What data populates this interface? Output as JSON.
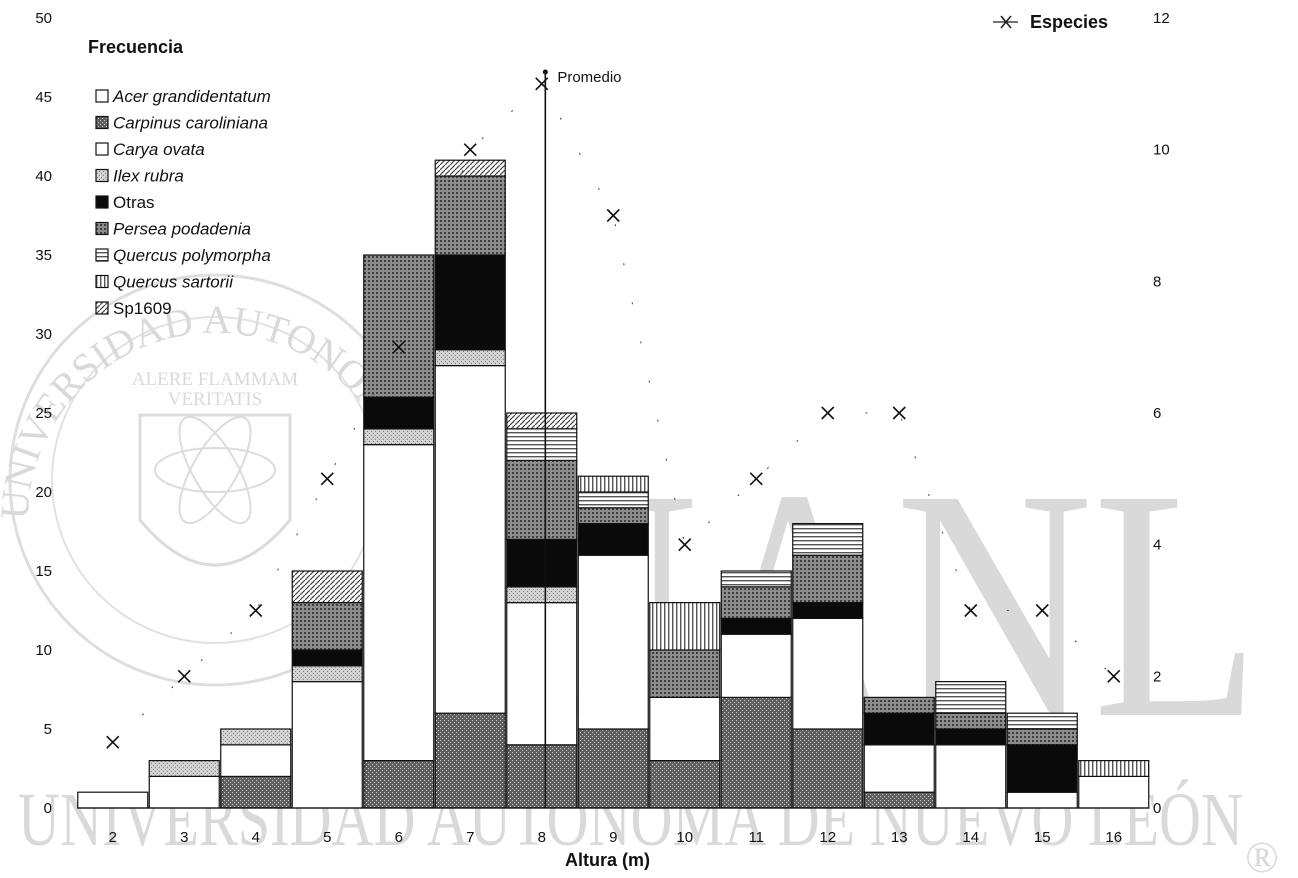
{
  "chart_data": {
    "type": "bar",
    "stacked": true,
    "xlabel": "Altura (m)",
    "ylabel": "Frecuencia",
    "y2label": "Especies",
    "categories": [
      "2",
      "3",
      "4",
      "5",
      "6",
      "7",
      "8",
      "9",
      "10",
      "11",
      "12",
      "13",
      "14",
      "15",
      "16"
    ],
    "ylim": [
      0,
      50
    ],
    "yticks": [
      "0",
      "5",
      "10",
      "15",
      "20",
      "25",
      "30",
      "35",
      "40",
      "45",
      "50"
    ],
    "y2lim": [
      0,
      12
    ],
    "y2ticks": [
      "0",
      "2",
      "4",
      "6",
      "8",
      "10",
      "12"
    ],
    "legend_position": "top-left",
    "series": [
      {
        "name": "Acer grandidentatum",
        "italic": true,
        "pattern": "white",
        "values": [
          0,
          0,
          0,
          0,
          0,
          0,
          0,
          0,
          0,
          0,
          0,
          0,
          0,
          0,
          0
        ]
      },
      {
        "name": "Carpinus caroliniana",
        "italic": true,
        "pattern": "darkdots",
        "values": [
          0,
          0,
          2,
          0,
          3,
          6,
          4,
          5,
          3,
          7,
          5,
          1,
          0,
          0,
          0
        ]
      },
      {
        "name": "Carya ovata",
        "italic": true,
        "pattern": "white",
        "values": [
          1,
          2,
          2,
          8,
          20,
          22,
          9,
          11,
          4,
          4,
          7,
          3,
          4,
          1,
          2
        ]
      },
      {
        "name": "Ilex rubra",
        "italic": true,
        "pattern": "lightdots",
        "values": [
          0,
          1,
          1,
          1,
          1,
          1,
          1,
          0,
          0,
          0,
          0,
          0,
          0,
          0,
          0
        ]
      },
      {
        "name": "Otras",
        "italic": false,
        "pattern": "black",
        "values": [
          0,
          0,
          0,
          1,
          2,
          6,
          3,
          2,
          0,
          1,
          1,
          2,
          1,
          3,
          0
        ]
      },
      {
        "name": "Persea podadenia",
        "italic": true,
        "pattern": "medium",
        "values": [
          0,
          0,
          0,
          3,
          9,
          5,
          5,
          1,
          3,
          2,
          3,
          1,
          1,
          1,
          0
        ]
      },
      {
        "name": "Quercus polymorpha",
        "italic": true,
        "pattern": "hlines",
        "values": [
          0,
          0,
          0,
          0,
          0,
          0,
          2,
          1,
          0,
          1,
          2,
          0,
          2,
          1,
          0
        ]
      },
      {
        "name": "Quercus sartorii",
        "italic": true,
        "pattern": "vlines",
        "values": [
          0,
          0,
          0,
          0,
          0,
          0,
          0,
          1,
          3,
          0,
          0,
          0,
          0,
          0,
          1
        ]
      },
      {
        "name": "Sp1609",
        "italic": false,
        "pattern": "hatch",
        "values": [
          0,
          0,
          0,
          2,
          0,
          1,
          1,
          0,
          0,
          0,
          0,
          0,
          0,
          0,
          0
        ]
      }
    ],
    "especies": {
      "name": "Especies",
      "values": [
        1,
        2,
        3,
        5,
        7,
        10,
        11,
        9,
        4,
        5,
        6,
        6,
        3,
        3,
        2
      ]
    },
    "promedio": {
      "label": "Promedio",
      "x": 8.0
    }
  },
  "watermark": {
    "main": "UANL",
    "bottom": "UNIVERSIDAD AUTÓNOMA DE NUEVO LEÓN",
    "seal_ring": "UNIVERSIDAD AUTONOMA DE NUEVO LEON",
    "seal_motto": "ALERE FLAMMAM VERITATIS",
    "registered": "®"
  }
}
